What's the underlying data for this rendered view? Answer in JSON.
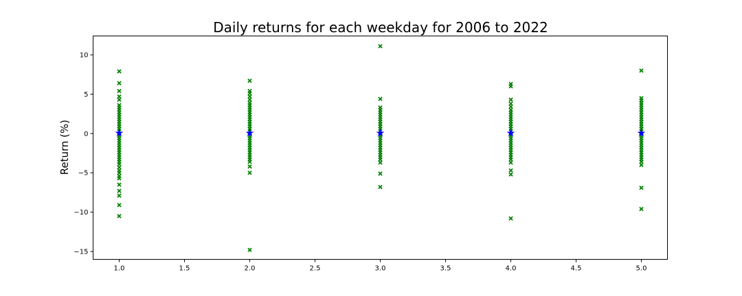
{
  "chart_data": {
    "type": "scatter",
    "title": "Daily returns for each weekday for 2006 to 2022",
    "xlabel": "",
    "ylabel": "Return (%)",
    "xlim": [
      0.8,
      5.2
    ],
    "ylim": [
      -16.0,
      12.4
    ],
    "xticks": [
      1.0,
      1.5,
      2.0,
      2.5,
      3.0,
      3.5,
      4.0,
      4.5,
      5.0
    ],
    "xtick_labels": [
      "1.0",
      "1.5",
      "2.0",
      "2.5",
      "3.0",
      "3.5",
      "4.0",
      "4.5",
      "5.0"
    ],
    "yticks": [
      -15,
      -10,
      -5,
      0,
      5,
      10
    ],
    "ytick_labels": [
      "−15",
      "−10",
      "−5",
      "0",
      "5",
      "10"
    ],
    "grid": false,
    "legend": "none",
    "series": [
      {
        "marker": "x-filled",
        "color": "#008000",
        "points": [
          [
            1,
            7.9
          ],
          [
            1,
            6.4
          ],
          [
            1,
            5.4
          ],
          [
            1,
            4.7
          ],
          [
            1,
            4.3
          ],
          [
            1,
            3.6
          ],
          [
            1,
            3.3
          ],
          [
            1,
            3.0
          ],
          [
            1,
            2.7
          ],
          [
            1,
            2.4
          ],
          [
            1,
            2.1
          ],
          [
            1,
            1.8
          ],
          [
            1,
            1.5
          ],
          [
            1,
            1.2
          ],
          [
            1,
            0.9
          ],
          [
            1,
            0.6
          ],
          [
            1,
            0.3
          ],
          [
            1,
            0.0
          ],
          [
            1,
            -0.3
          ],
          [
            1,
            -0.6
          ],
          [
            1,
            -0.9
          ],
          [
            1,
            -1.2
          ],
          [
            1,
            -1.5
          ],
          [
            1,
            -1.8
          ],
          [
            1,
            -2.1
          ],
          [
            1,
            -2.4
          ],
          [
            1,
            -2.7
          ],
          [
            1,
            -3.0
          ],
          [
            1,
            -3.3
          ],
          [
            1,
            -3.6
          ],
          [
            1,
            -3.9
          ],
          [
            1,
            -4.3
          ],
          [
            1,
            -4.7
          ],
          [
            1,
            -5.0
          ],
          [
            1,
            -5.4
          ],
          [
            1,
            -5.7
          ],
          [
            1,
            -6.5
          ],
          [
            1,
            -7.3
          ],
          [
            1,
            -7.9
          ],
          [
            1,
            -9.1
          ],
          [
            1,
            -10.5
          ],
          [
            2,
            6.7
          ],
          [
            2,
            5.4
          ],
          [
            2,
            5.1
          ],
          [
            2,
            4.7
          ],
          [
            2,
            4.3
          ],
          [
            2,
            3.9
          ],
          [
            2,
            3.6
          ],
          [
            2,
            3.3
          ],
          [
            2,
            3.0
          ],
          [
            2,
            2.7
          ],
          [
            2,
            2.4
          ],
          [
            2,
            2.1
          ],
          [
            2,
            1.8
          ],
          [
            2,
            1.5
          ],
          [
            2,
            1.2
          ],
          [
            2,
            0.9
          ],
          [
            2,
            0.6
          ],
          [
            2,
            0.3
          ],
          [
            2,
            0.0
          ],
          [
            2,
            -0.3
          ],
          [
            2,
            -0.6
          ],
          [
            2,
            -0.9
          ],
          [
            2,
            -1.2
          ],
          [
            2,
            -1.5
          ],
          [
            2,
            -1.8
          ],
          [
            2,
            -2.1
          ],
          [
            2,
            -2.4
          ],
          [
            2,
            -2.7
          ],
          [
            2,
            -3.0
          ],
          [
            2,
            -3.3
          ],
          [
            2,
            -3.6
          ],
          [
            2,
            -4.2
          ],
          [
            2,
            -5.0
          ],
          [
            2,
            -14.8
          ],
          [
            3,
            11.1
          ],
          [
            3,
            4.4
          ],
          [
            3,
            3.3
          ],
          [
            3,
            3.0
          ],
          [
            3,
            2.7
          ],
          [
            3,
            2.4
          ],
          [
            3,
            2.1
          ],
          [
            3,
            1.8
          ],
          [
            3,
            1.5
          ],
          [
            3,
            1.2
          ],
          [
            3,
            0.9
          ],
          [
            3,
            0.6
          ],
          [
            3,
            0.3
          ],
          [
            3,
            0.0
          ],
          [
            3,
            -0.3
          ],
          [
            3,
            -0.6
          ],
          [
            3,
            -0.9
          ],
          [
            3,
            -1.2
          ],
          [
            3,
            -1.5
          ],
          [
            3,
            -1.8
          ],
          [
            3,
            -2.1
          ],
          [
            3,
            -2.4
          ],
          [
            3,
            -2.7
          ],
          [
            3,
            -3.0
          ],
          [
            3,
            -3.3
          ],
          [
            3,
            -3.7
          ],
          [
            3,
            -5.1
          ],
          [
            3,
            -6.8
          ],
          [
            4,
            6.3
          ],
          [
            4,
            6.0
          ],
          [
            4,
            4.3
          ],
          [
            4,
            3.8
          ],
          [
            4,
            3.4
          ],
          [
            4,
            3.0
          ],
          [
            4,
            2.7
          ],
          [
            4,
            2.4
          ],
          [
            4,
            2.1
          ],
          [
            4,
            1.8
          ],
          [
            4,
            1.5
          ],
          [
            4,
            1.2
          ],
          [
            4,
            0.9
          ],
          [
            4,
            0.6
          ],
          [
            4,
            0.3
          ],
          [
            4,
            0.0
          ],
          [
            4,
            -0.3
          ],
          [
            4,
            -0.6
          ],
          [
            4,
            -0.9
          ],
          [
            4,
            -1.2
          ],
          [
            4,
            -1.5
          ],
          [
            4,
            -1.8
          ],
          [
            4,
            -2.1
          ],
          [
            4,
            -2.4
          ],
          [
            4,
            -2.7
          ],
          [
            4,
            -3.0
          ],
          [
            4,
            -3.3
          ],
          [
            4,
            -3.7
          ],
          [
            4,
            -4.7
          ],
          [
            4,
            -5.2
          ],
          [
            4,
            -10.8
          ],
          [
            5,
            8.0
          ],
          [
            5,
            4.5
          ],
          [
            5,
            4.2
          ],
          [
            5,
            3.9
          ],
          [
            5,
            3.6
          ],
          [
            5,
            3.3
          ],
          [
            5,
            3.0
          ],
          [
            5,
            2.7
          ],
          [
            5,
            2.4
          ],
          [
            5,
            2.1
          ],
          [
            5,
            1.8
          ],
          [
            5,
            1.5
          ],
          [
            5,
            1.2
          ],
          [
            5,
            0.9
          ],
          [
            5,
            0.6
          ],
          [
            5,
            0.3
          ],
          [
            5,
            0.0
          ],
          [
            5,
            -0.3
          ],
          [
            5,
            -0.6
          ],
          [
            5,
            -0.9
          ],
          [
            5,
            -1.2
          ],
          [
            5,
            -1.5
          ],
          [
            5,
            -1.8
          ],
          [
            5,
            -2.1
          ],
          [
            5,
            -2.4
          ],
          [
            5,
            -2.7
          ],
          [
            5,
            -3.0
          ],
          [
            5,
            -3.3
          ],
          [
            5,
            -3.6
          ],
          [
            5,
            -4.0
          ],
          [
            5,
            -6.9
          ],
          [
            5,
            -9.6
          ]
        ]
      },
      {
        "marker": "star",
        "color": "#0000ff",
        "points": [
          [
            1,
            0.05
          ],
          [
            2,
            0.05
          ],
          [
            3,
            0.05
          ],
          [
            4,
            0.05
          ],
          [
            5,
            0.05
          ]
        ]
      }
    ]
  }
}
